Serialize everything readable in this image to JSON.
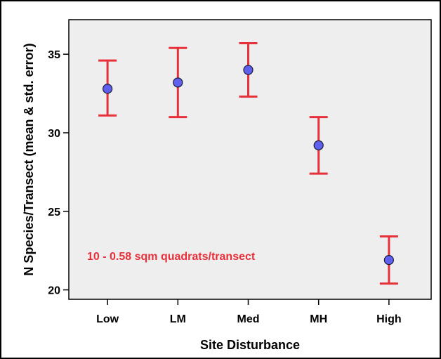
{
  "chart_data": {
    "type": "errorbar",
    "xlabel": "Site Disturbance",
    "ylabel": "N Species/Transect (mean & std. error)",
    "categories": [
      "Low",
      "LM",
      "Med",
      "MH",
      "High"
    ],
    "series": [
      {
        "mean": [
          32.8,
          33.2,
          34.0,
          29.2,
          21.9
        ],
        "lower": [
          31.1,
          31.0,
          32.3,
          27.4,
          20.4
        ],
        "upper": [
          34.6,
          35.4,
          35.7,
          31.0,
          23.4
        ]
      }
    ],
    "yticks": [
      20,
      25,
      30,
      35
    ],
    "ylim": [
      19.4,
      37.2
    ],
    "grid": false,
    "annotation": "10 - 0.58 sqm quadrats/transect",
    "colors": {
      "plot_background": "#eeeeee",
      "error_bar": "#e8303a",
      "marker_fill": "#6060ee",
      "marker_stroke": "#1a1a3a",
      "annotation": "#e8303a"
    }
  }
}
